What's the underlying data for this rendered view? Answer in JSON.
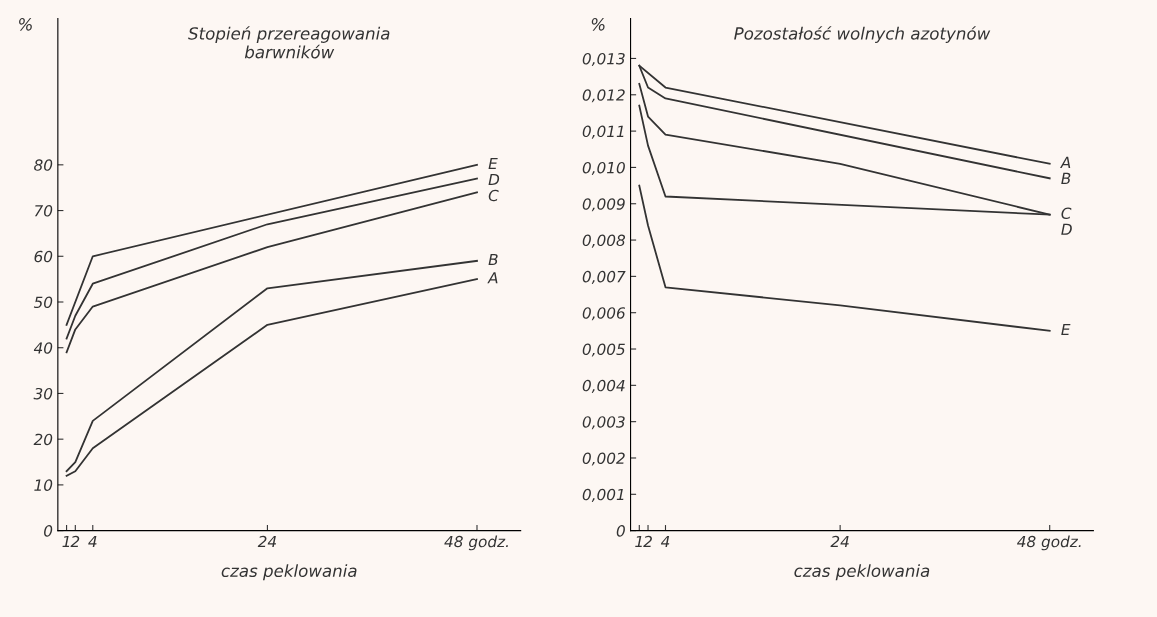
{
  "chart_data": [
    {
      "type": "line",
      "title": "Stopień przereagowania\nbarwników",
      "xlabel": "czas peklowania",
      "ylabel": "%",
      "xlim": [
        0,
        53
      ],
      "xticks": [
        1,
        2,
        4,
        24,
        {
          "value": 48,
          "label": "48 godz."
        }
      ],
      "ylim": [
        0,
        112
      ],
      "yticks": [
        0,
        10,
        20,
        30,
        40,
        50,
        60,
        70,
        80
      ],
      "grid": false,
      "legend": false,
      "marker": "none",
      "line_style": "solid",
      "series": [
        {
          "name": "E",
          "color": "#333333",
          "x": [
            1,
            4,
            48
          ],
          "values": [
            45,
            60,
            80
          ]
        },
        {
          "name": "D",
          "color": "#333333",
          "x": [
            1,
            2,
            4,
            24,
            48
          ],
          "values": [
            42,
            47,
            54,
            67,
            77
          ]
        },
        {
          "name": "C",
          "color": "#333333",
          "x": [
            1,
            2,
            4,
            24,
            48
          ],
          "values": [
            39,
            44,
            49,
            62,
            74
          ]
        },
        {
          "name": "B",
          "color": "#333333",
          "x": [
            1,
            2,
            4,
            24,
            48
          ],
          "values": [
            13,
            15,
            24,
            53,
            59
          ]
        },
        {
          "name": "A",
          "color": "#333333",
          "x": [
            1,
            2,
            4,
            24,
            48
          ],
          "values": [
            12,
            13,
            18,
            45,
            55
          ]
        }
      ]
    },
    {
      "type": "line",
      "title": "Pozostałość wolnych azotynów",
      "xlabel": "czas peklowania",
      "ylabel": "%",
      "xlim": [
        0,
        53
      ],
      "xticks": [
        1,
        2,
        4,
        24,
        {
          "value": 48,
          "label": "48 godz."
        }
      ],
      "ylim": [
        0,
        0.0141
      ],
      "yticks": [
        0,
        {
          "value": 0.001,
          "label": "0,001"
        },
        {
          "value": 0.002,
          "label": "0,002"
        },
        {
          "value": 0.003,
          "label": "0,003"
        },
        {
          "value": 0.004,
          "label": "0,004"
        },
        {
          "value": 0.005,
          "label": "0,005"
        },
        {
          "value": 0.006,
          "label": "0,006"
        },
        {
          "value": 0.007,
          "label": "0,007"
        },
        {
          "value": 0.008,
          "label": "0,008"
        },
        {
          "value": 0.009,
          "label": "0,009"
        },
        {
          "value": 0.01,
          "label": "0,010"
        },
        {
          "value": 0.011,
          "label": "0,011"
        },
        {
          "value": 0.012,
          "label": "0,012"
        },
        {
          "value": 0.013,
          "label": "0,013"
        }
      ],
      "grid": false,
      "legend": false,
      "marker": "none",
      "line_style": "solid",
      "series": [
        {
          "name": "A",
          "color": "#333333",
          "x": [
            1,
            4,
            48
          ],
          "values": [
            0.0128,
            0.0122,
            0.0101
          ]
        },
        {
          "name": "B",
          "color": "#333333",
          "x": [
            1,
            2,
            4,
            48
          ],
          "values": [
            0.0128,
            0.0122,
            0.0119,
            0.0097
          ]
        },
        {
          "name": "C",
          "color": "#333333",
          "x": [
            1,
            2,
            4,
            24,
            48
          ],
          "values": [
            0.0123,
            0.0114,
            0.0109,
            0.0101,
            0.0087
          ]
        },
        {
          "name": "D",
          "color": "#333333",
          "x": [
            1,
            2,
            4,
            48
          ],
          "values": [
            0.0117,
            0.0106,
            0.0092,
            0.0087
          ]
        },
        {
          "name": "E",
          "color": "#333333",
          "x": [
            1,
            2,
            4,
            24,
            48
          ],
          "values": [
            0.0095,
            0.0084,
            0.0067,
            0.0062,
            0.0055
          ]
        }
      ]
    }
  ]
}
